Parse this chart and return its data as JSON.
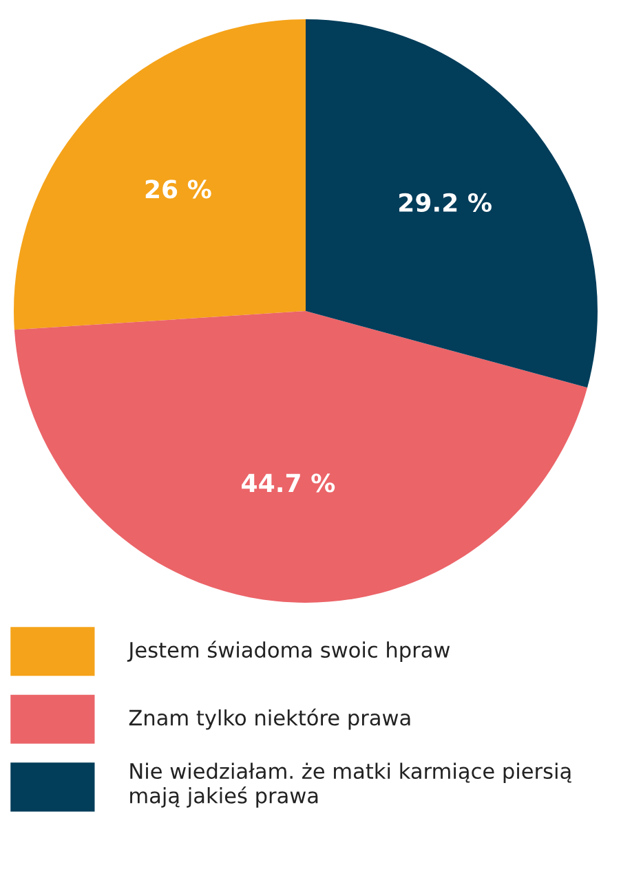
{
  "chart_data": {
    "type": "pie",
    "categories": [
      "Jestem świadoma swoic hpraw",
      "Znam tylko niektóre prawa",
      "Nie wiedziałam. że matki karmiące piersią mają jakieś prawa"
    ],
    "values": [
      26,
      44.7,
      29.2
    ],
    "colors": [
      "#f5a31a",
      "#eb6468",
      "#023d5a"
    ],
    "value_labels": [
      "26 %",
      "44.7 %",
      "29.2 %"
    ],
    "legend": "bottom"
  }
}
